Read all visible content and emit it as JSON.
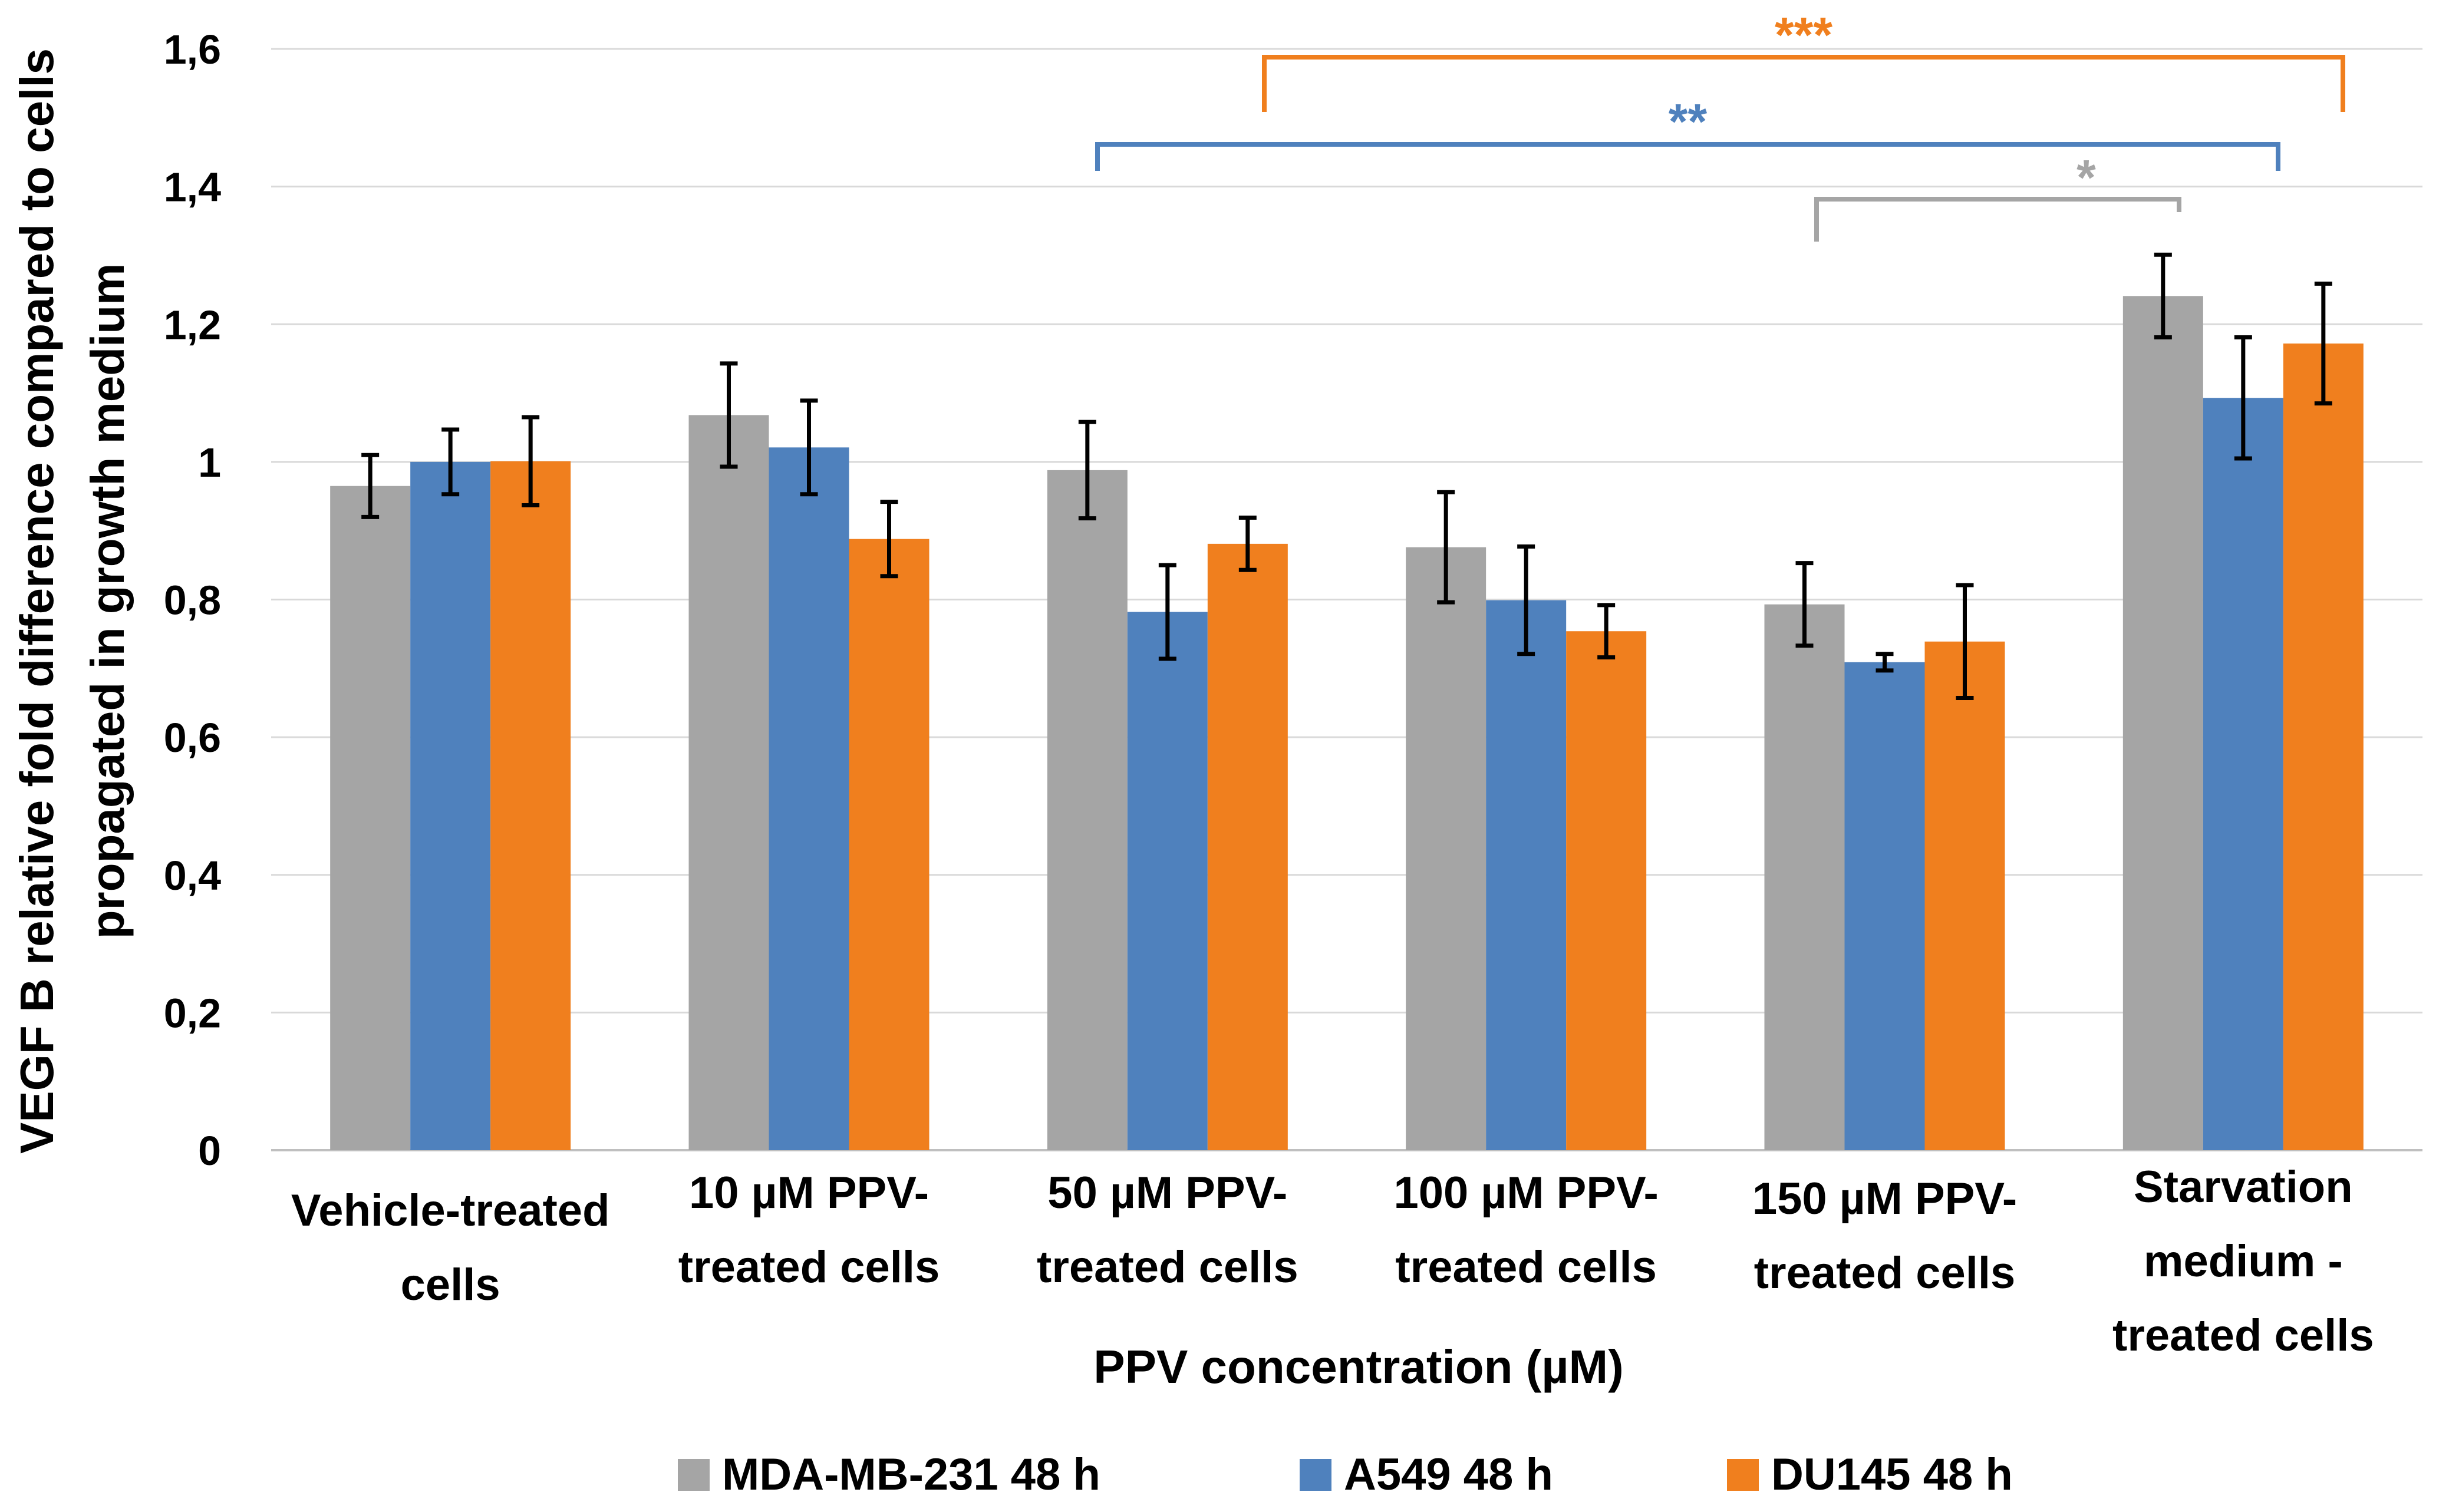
{
  "chart_data": {
    "type": "bar",
    "title": "",
    "xlabel": "PPV concentration (µM)",
    "ylabel": "VEGF B relative fold difference compared to cells propagated in growth medium",
    "ylim": [
      0,
      1.6
    ],
    "yticks": [
      "0",
      "0,2",
      "0,4",
      "0,6",
      "0,8",
      "1",
      "1,2",
      "1,4",
      "1,6"
    ],
    "grid": true,
    "legend_position": "bottom",
    "categories": [
      "Vehicle-treated cells",
      "10 µM PPV-treated cells",
      "50 µM PPV-treated cells",
      "100 µM PPV-treated cells",
      "150 µM PPV-treated cells",
      "Starvation medium - treated cells"
    ],
    "category_lines": [
      [
        "Vehicle-treated",
        "cells"
      ],
      [
        "10 µM PPV-",
        "treated cells"
      ],
      [
        "50 µM PPV-",
        "treated cells"
      ],
      [
        "100 µM PPV-",
        "treated cells"
      ],
      [
        "150 µM PPV-",
        "treated cells"
      ],
      [
        "Starvation",
        "medium -",
        "treated cells"
      ]
    ],
    "series": [
      {
        "name": "MDA-MB-231 48 h",
        "color": "#a5a5a5",
        "values": [
          0.965,
          1.068,
          0.988,
          0.876,
          0.793,
          1.241
        ],
        "errors": [
          0.045,
          0.075,
          0.07,
          0.08,
          0.06,
          0.06
        ]
      },
      {
        "name": "A549 48 h",
        "color": "#4f81bd",
        "values": [
          1.0,
          1.021,
          0.782,
          0.799,
          0.709,
          1.093
        ],
        "errors": [
          0.047,
          0.068,
          0.068,
          0.078,
          0.012,
          0.088
        ]
      },
      {
        "name": "DU145 48 h",
        "color": "#f07f1e",
        "values": [
          1.001,
          0.888,
          0.881,
          0.754,
          0.739,
          1.172
        ],
        "errors": [
          0.064,
          0.054,
          0.038,
          0.038,
          0.082,
          0.087
        ]
      }
    ],
    "significance": [
      {
        "label": "***",
        "color": "#f07f1e",
        "from": "50 µM PPV-treated cells",
        "to": "Starvation medium - treated cells"
      },
      {
        "label": "**",
        "color": "#4f81bd",
        "from": "50 µM PPV-treated cells",
        "to": "Starvation medium - treated cells"
      },
      {
        "label": "*",
        "color": "#a5a5a5",
        "from": "150 µM PPV-treated cells",
        "to": "Starvation medium - treated cells"
      }
    ]
  }
}
